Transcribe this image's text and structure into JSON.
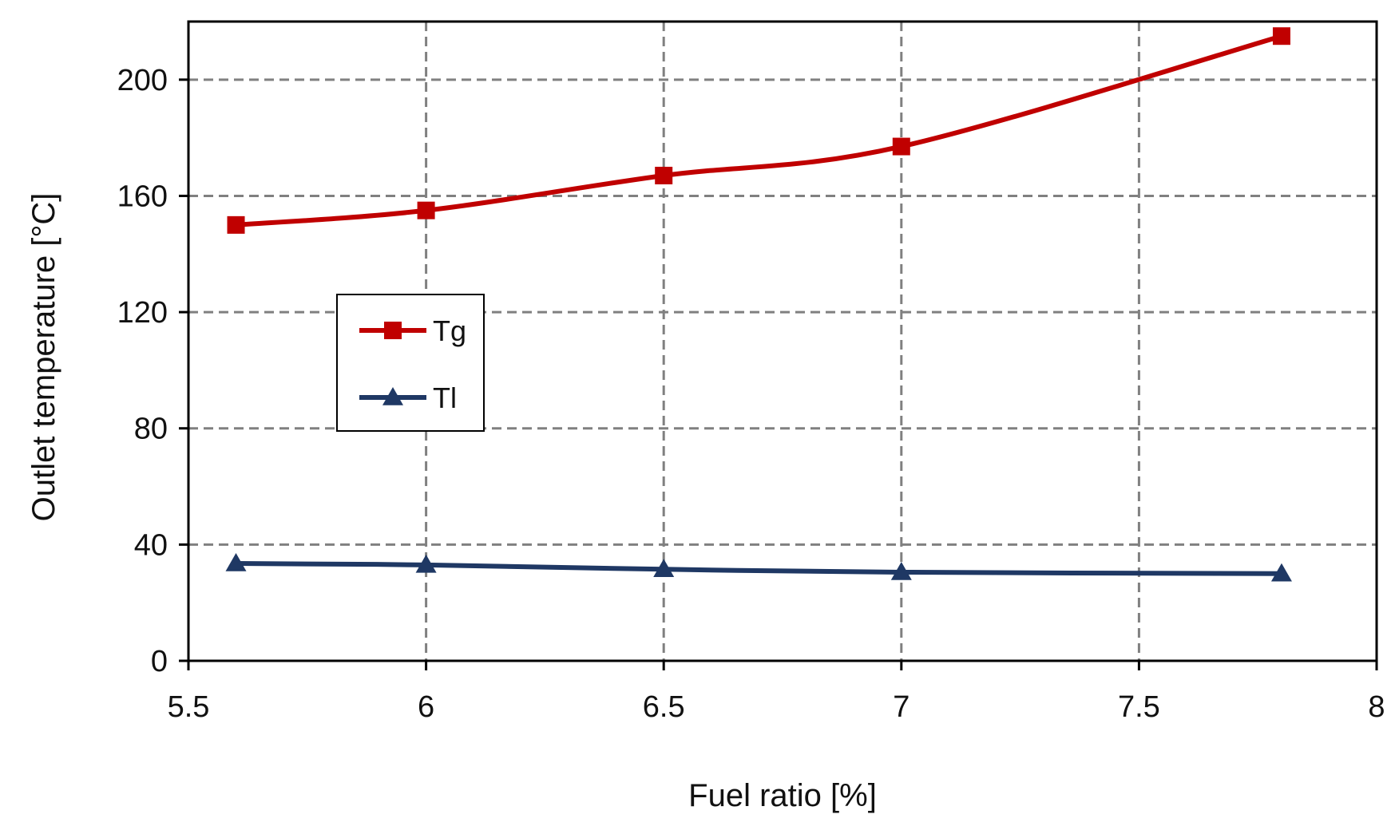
{
  "chart_data": {
    "type": "line",
    "xlabel": "Fuel ratio [%]",
    "ylabel": "Outlet temperature  [°C]",
    "xlim": [
      5.5,
      8
    ],
    "ylim": [
      0,
      220
    ],
    "xticks": [
      5.5,
      6,
      6.5,
      7,
      7.5,
      8
    ],
    "xtick_labels": [
      "5.5",
      "6",
      "6.5",
      "7",
      "7.5",
      "8"
    ],
    "yticks": [
      0,
      40,
      80,
      120,
      160,
      200
    ],
    "ytick_labels": [
      "0",
      "40",
      "80",
      "120",
      "160",
      "200"
    ],
    "grid": true,
    "legend_position": "center-left",
    "series": [
      {
        "name": "Tg",
        "color": "#C00000",
        "marker": "square",
        "x": [
          5.6,
          6,
          6.5,
          7,
          7.8
        ],
        "y": [
          150,
          155,
          167,
          177,
          215
        ]
      },
      {
        "name": "Tl",
        "color": "#1F3864",
        "marker": "triangle",
        "x": [
          5.6,
          6,
          6.5,
          7,
          7.8
        ],
        "y": [
          33.5,
          33,
          31.5,
          30.5,
          30
        ]
      }
    ]
  }
}
